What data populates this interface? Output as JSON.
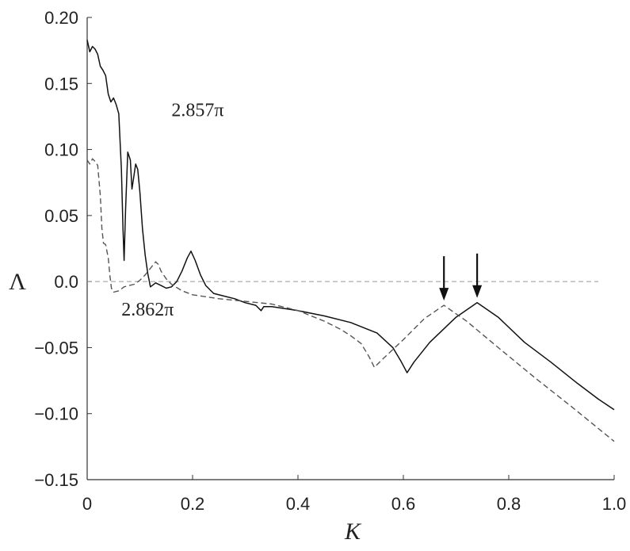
{
  "chart_data": {
    "type": "line",
    "xlabel": "K",
    "ylabel": "Λ",
    "xlim": [
      0,
      1.0
    ],
    "ylim": [
      -0.15,
      0.2
    ],
    "xticks": [
      "0",
      "0.2",
      "0.4",
      "0.6",
      "0.8",
      "1.0"
    ],
    "yticks": [
      "0.20",
      "0.15",
      "0.10",
      "0.05",
      "0.0",
      "−0.05",
      "−0.10",
      "−0.15"
    ],
    "grid": false,
    "zero_line": true,
    "series": [
      {
        "name": "2.857π",
        "style": "solid",
        "points": [
          [
            0.0,
            0.183
          ],
          [
            0.005,
            0.174
          ],
          [
            0.01,
            0.178
          ],
          [
            0.015,
            0.176
          ],
          [
            0.02,
            0.172
          ],
          [
            0.025,
            0.163
          ],
          [
            0.03,
            0.16
          ],
          [
            0.035,
            0.156
          ],
          [
            0.04,
            0.142
          ],
          [
            0.045,
            0.136
          ],
          [
            0.05,
            0.139
          ],
          [
            0.055,
            0.134
          ],
          [
            0.06,
            0.127
          ],
          [
            0.065,
            0.085
          ],
          [
            0.068,
            0.04
          ],
          [
            0.07,
            0.016
          ],
          [
            0.073,
            0.055
          ],
          [
            0.077,
            0.098
          ],
          [
            0.082,
            0.092
          ],
          [
            0.085,
            0.07
          ],
          [
            0.088,
            0.078
          ],
          [
            0.092,
            0.089
          ],
          [
            0.096,
            0.085
          ],
          [
            0.1,
            0.068
          ],
          [
            0.105,
            0.04
          ],
          [
            0.11,
            0.02
          ],
          [
            0.115,
            0.006
          ],
          [
            0.118,
            0.0
          ],
          [
            0.12,
            -0.004
          ],
          [
            0.13,
            -0.001
          ],
          [
            0.14,
            -0.003
          ],
          [
            0.15,
            -0.005
          ],
          [
            0.16,
            -0.004
          ],
          [
            0.17,
            0.0
          ],
          [
            0.18,
            0.008
          ],
          [
            0.19,
            0.018
          ],
          [
            0.197,
            0.023
          ],
          [
            0.205,
            0.016
          ],
          [
            0.215,
            0.005
          ],
          [
            0.225,
            -0.003
          ],
          [
            0.24,
            -0.009
          ],
          [
            0.26,
            -0.011
          ],
          [
            0.28,
            -0.013
          ],
          [
            0.3,
            -0.016
          ],
          [
            0.32,
            -0.018
          ],
          [
            0.33,
            -0.022
          ],
          [
            0.335,
            -0.019
          ],
          [
            0.35,
            -0.019
          ],
          [
            0.4,
            -0.022
          ],
          [
            0.45,
            -0.026
          ],
          [
            0.5,
            -0.031
          ],
          [
            0.55,
            -0.039
          ],
          [
            0.58,
            -0.05
          ],
          [
            0.595,
            -0.06
          ],
          [
            0.607,
            -0.069
          ],
          [
            0.62,
            -0.061
          ],
          [
            0.65,
            -0.046
          ],
          [
            0.7,
            -0.027
          ],
          [
            0.74,
            -0.016
          ],
          [
            0.78,
            -0.027
          ],
          [
            0.83,
            -0.046
          ],
          [
            0.88,
            -0.061
          ],
          [
            0.93,
            -0.077
          ],
          [
            0.97,
            -0.089
          ],
          [
            1.0,
            -0.097
          ]
        ]
      },
      {
        "name": "2.862π",
        "style": "dashed",
        "points": [
          [
            0.0,
            0.092
          ],
          [
            0.005,
            0.089
          ],
          [
            0.01,
            0.093
          ],
          [
            0.015,
            0.091
          ],
          [
            0.02,
            0.088
          ],
          [
            0.025,
            0.065
          ],
          [
            0.028,
            0.04
          ],
          [
            0.031,
            0.029
          ],
          [
            0.035,
            0.028
          ],
          [
            0.04,
            0.018
          ],
          [
            0.043,
            0.005
          ],
          [
            0.046,
            -0.005
          ],
          [
            0.05,
            -0.008
          ],
          [
            0.06,
            -0.007
          ],
          [
            0.07,
            -0.004
          ],
          [
            0.08,
            -0.003
          ],
          [
            0.09,
            -0.002
          ],
          [
            0.1,
            0.001
          ],
          [
            0.11,
            0.005
          ],
          [
            0.12,
            0.01
          ],
          [
            0.13,
            0.015
          ],
          [
            0.135,
            0.013
          ],
          [
            0.14,
            0.008
          ],
          [
            0.15,
            0.002
          ],
          [
            0.16,
            -0.002
          ],
          [
            0.18,
            -0.007
          ],
          [
            0.2,
            -0.01
          ],
          [
            0.25,
            -0.013
          ],
          [
            0.3,
            -0.015
          ],
          [
            0.35,
            -0.017
          ],
          [
            0.4,
            -0.022
          ],
          [
            0.45,
            -0.03
          ],
          [
            0.48,
            -0.036
          ],
          [
            0.5,
            -0.041
          ],
          [
            0.52,
            -0.047
          ],
          [
            0.535,
            -0.057
          ],
          [
            0.545,
            -0.065
          ],
          [
            0.56,
            -0.059
          ],
          [
            0.6,
            -0.044
          ],
          [
            0.64,
            -0.028
          ],
          [
            0.677,
            -0.018
          ],
          [
            0.72,
            -0.03
          ],
          [
            0.78,
            -0.05
          ],
          [
            0.85,
            -0.073
          ],
          [
            0.92,
            -0.095
          ],
          [
            1.0,
            -0.121
          ]
        ]
      }
    ],
    "annotations": [
      {
        "text": "2.857π",
        "x": 0.16,
        "y": 0.13
      },
      {
        "text": "2.862π",
        "x": 0.065,
        "y": -0.021
      }
    ],
    "arrows": [
      {
        "x": 0.677,
        "y": -0.018
      },
      {
        "x": 0.74,
        "y": -0.016
      }
    ]
  }
}
